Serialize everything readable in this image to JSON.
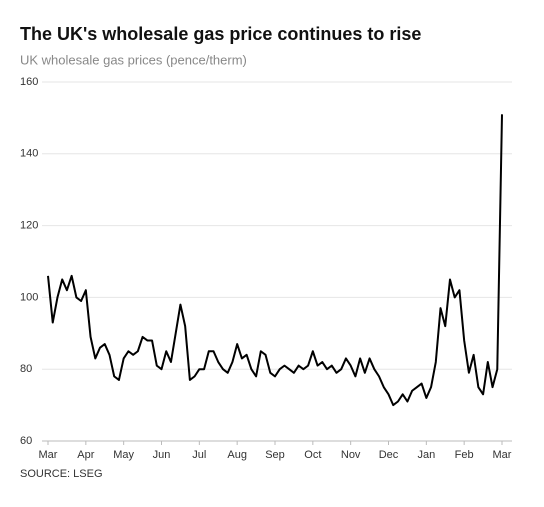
{
  "chart_data": {
    "type": "line",
    "title": "The UK's wholesale gas price continues to rise",
    "subtitle": "UK wholesale gas prices (pence/therm)",
    "source": "SOURCE: LSEG",
    "categories": [
      "Mar",
      null,
      null,
      null,
      null,
      null,
      null,
      null,
      "Apr",
      null,
      null,
      null,
      null,
      null,
      null,
      null,
      "May",
      null,
      null,
      null,
      null,
      null,
      null,
      null,
      "Jun",
      null,
      null,
      null,
      null,
      null,
      null,
      null,
      "Jul",
      null,
      null,
      null,
      null,
      null,
      null,
      null,
      "Aug",
      null,
      null,
      null,
      null,
      null,
      null,
      null,
      "Sep",
      null,
      null,
      null,
      null,
      null,
      null,
      null,
      "Oct",
      null,
      null,
      null,
      null,
      null,
      null,
      null,
      "Nov",
      null,
      null,
      null,
      null,
      null,
      null,
      null,
      "Dec",
      null,
      null,
      null,
      null,
      null,
      null,
      null,
      "Jan",
      null,
      null,
      null,
      null,
      null,
      null,
      null,
      "Feb",
      null,
      null,
      null,
      null,
      null,
      null,
      null,
      "Mar"
    ],
    "series": [
      {
        "name": "UK wholesale gas price",
        "color": "#000000",
        "values": [
          106,
          93,
          100,
          105,
          102,
          106,
          100,
          99,
          102,
          89,
          83,
          86,
          87,
          84,
          78,
          77,
          83,
          85,
          84,
          85,
          89,
          88,
          88,
          81,
          80,
          85,
          82,
          90,
          98,
          92,
          77,
          78,
          80,
          80,
          85,
          85,
          82,
          80,
          79,
          82,
          87,
          83,
          84,
          80,
          78,
          85,
          84,
          79,
          78,
          80,
          81,
          80,
          79,
          81,
          80,
          81,
          85,
          81,
          82,
          80,
          81,
          79,
          80,
          83,
          81,
          78,
          83,
          79,
          83,
          80,
          78,
          75,
          73,
          70,
          71,
          73,
          71,
          74,
          75,
          76,
          72,
          75,
          82,
          97,
          92,
          105,
          100,
          102,
          88,
          79,
          84,
          75,
          73,
          82,
          75,
          80,
          151
        ]
      }
    ],
    "ylim": [
      60,
      160
    ],
    "yticks": [
      60,
      80,
      100,
      120,
      140,
      160
    ],
    "grid": true
  }
}
